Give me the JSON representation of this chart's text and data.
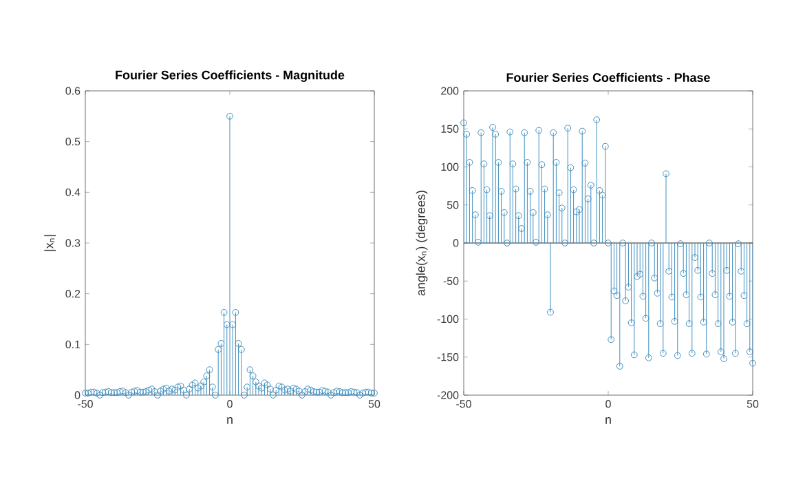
{
  "chart_data": [
    {
      "type": "lollipop",
      "title": "Fourier Series Coefficients - Magnitude",
      "xlabel": "n",
      "ylabel": "|x$_{n}$|",
      "marker": "circle",
      "line_style": "solid",
      "grid": false,
      "x": [
        -50,
        -49,
        -48,
        -47,
        -46,
        -45,
        -44,
        -43,
        -42,
        -41,
        -40,
        -39,
        -38,
        -37,
        -36,
        -35,
        -34,
        -33,
        -32,
        -31,
        -30,
        -29,
        -28,
        -27,
        -26,
        -25,
        -24,
        -23,
        -22,
        -21,
        -20,
        -19,
        -18,
        -17,
        -16,
        -15,
        -14,
        -13,
        -12,
        -11,
        -10,
        -9,
        -8,
        -7,
        -6,
        -5,
        -4,
        -3,
        -2,
        -1,
        0,
        1,
        2,
        3,
        4,
        5,
        6,
        7,
        8,
        9,
        10,
        11,
        12,
        13,
        14,
        15,
        16,
        17,
        18,
        19,
        20,
        21,
        22,
        23,
        24,
        25,
        26,
        27,
        28,
        29,
        30,
        31,
        32,
        33,
        34,
        35,
        36,
        37,
        38,
        39,
        40,
        41,
        42,
        43,
        44,
        45,
        46,
        47,
        48,
        49,
        50
      ],
      "series": [
        {
          "color": "#3d8fbf",
          "values": [
            0.004,
            0.004,
            0.006,
            0.006,
            0.004,
            0.0,
            0.005,
            0.006,
            0.007,
            0.005,
            0.005,
            0.005,
            0.007,
            0.008,
            0.005,
            0.0,
            0.006,
            0.008,
            0.009,
            0.006,
            0.006,
            0.007,
            0.01,
            0.012,
            0.007,
            0.0,
            0.008,
            0.012,
            0.014,
            0.008,
            0.012,
            0.01,
            0.016,
            0.018,
            0.01,
            0.0,
            0.012,
            0.02,
            0.024,
            0.014,
            0.018,
            0.026,
            0.038,
            0.05,
            0.016,
            0.0,
            0.09,
            0.102,
            0.163,
            0.139,
            0.55,
            0.139,
            0.163,
            0.102,
            0.09,
            0.0,
            0.016,
            0.05,
            0.038,
            0.026,
            0.018,
            0.014,
            0.024,
            0.02,
            0.012,
            0.0,
            0.01,
            0.018,
            0.016,
            0.01,
            0.012,
            0.008,
            0.014,
            0.012,
            0.008,
            0.0,
            0.007,
            0.012,
            0.01,
            0.007,
            0.006,
            0.006,
            0.009,
            0.008,
            0.006,
            0.0,
            0.005,
            0.008,
            0.007,
            0.005,
            0.005,
            0.005,
            0.007,
            0.006,
            0.005,
            0.0,
            0.004,
            0.006,
            0.006,
            0.004,
            0.004
          ]
        }
      ],
      "xlim": [
        -50,
        50
      ],
      "xticks": [
        -50,
        0,
        50
      ],
      "ylim": [
        0,
        0.6
      ],
      "yticks": [
        0,
        0.1,
        0.2,
        0.3,
        0.4,
        0.5,
        0.6
      ]
    },
    {
      "type": "lollipop",
      "title": "Fourier Series Coefficients - Phase",
      "xlabel": "n",
      "ylabel": "angle(x$_{n}$) (degrees)",
      "marker": "circle",
      "line_style": "solid",
      "grid": false,
      "x": [
        -50,
        -49,
        -48,
        -47,
        -46,
        -45,
        -44,
        -43,
        -42,
        -41,
        -40,
        -39,
        -38,
        -37,
        -36,
        -35,
        -34,
        -33,
        -32,
        -31,
        -30,
        -29,
        -28,
        -27,
        -26,
        -25,
        -24,
        -23,
        -22,
        -21,
        -20,
        -19,
        -18,
        -17,
        -16,
        -15,
        -14,
        -13,
        -12,
        -11,
        -10,
        -9,
        -8,
        -7,
        -6,
        -5,
        -4,
        -3,
        -2,
        -1,
        0,
        1,
        2,
        3,
        4,
        5,
        6,
        7,
        8,
        9,
        10,
        11,
        12,
        13,
        14,
        15,
        16,
        17,
        18,
        19,
        20,
        21,
        22,
        23,
        24,
        25,
        26,
        27,
        28,
        29,
        30,
        31,
        32,
        33,
        34,
        35,
        36,
        37,
        38,
        39,
        40,
        41,
        42,
        43,
        44,
        45,
        46,
        47,
        48,
        49,
        50
      ],
      "series": [
        {
          "color": "#3d8fbf",
          "values": [
            158,
            143,
            106,
            69,
            37,
            1,
            145,
            104,
            70,
            36,
            152,
            143,
            106,
            68,
            40,
            0,
            146,
            104,
            71,
            36,
            19,
            145,
            106,
            68,
            40,
            1,
            148,
            103,
            71,
            37,
            -91,
            145,
            106,
            66,
            46,
            0,
            151,
            99,
            70,
            41,
            44,
            147,
            105,
            58,
            76,
            0,
            162,
            69,
            63,
            127,
            0,
            -127,
            -63,
            -69,
            -162,
            0,
            -76,
            -58,
            -105,
            -147,
            -44,
            -41,
            -70,
            -99,
            -151,
            0,
            -46,
            -66,
            -106,
            -145,
            91,
            -37,
            -71,
            -103,
            -148,
            -1,
            -40,
            -68,
            -106,
            -145,
            -19,
            -36,
            -71,
            -104,
            -146,
            0,
            -40,
            -68,
            -106,
            -143,
            -152,
            -36,
            -70,
            -104,
            -145,
            -1,
            -37,
            -69,
            -106,
            -143,
            -158
          ]
        }
      ],
      "ref_lines": [
        {
          "axis": "y",
          "value": 0,
          "color": "#262626"
        }
      ],
      "xlim": [
        -50,
        50
      ],
      "xticks": [
        -50,
        0,
        50
      ],
      "ylim": [
        -200,
        200
      ],
      "yticks": [
        -200,
        -150,
        -100,
        -50,
        0,
        50,
        100,
        150,
        200
      ]
    }
  ]
}
